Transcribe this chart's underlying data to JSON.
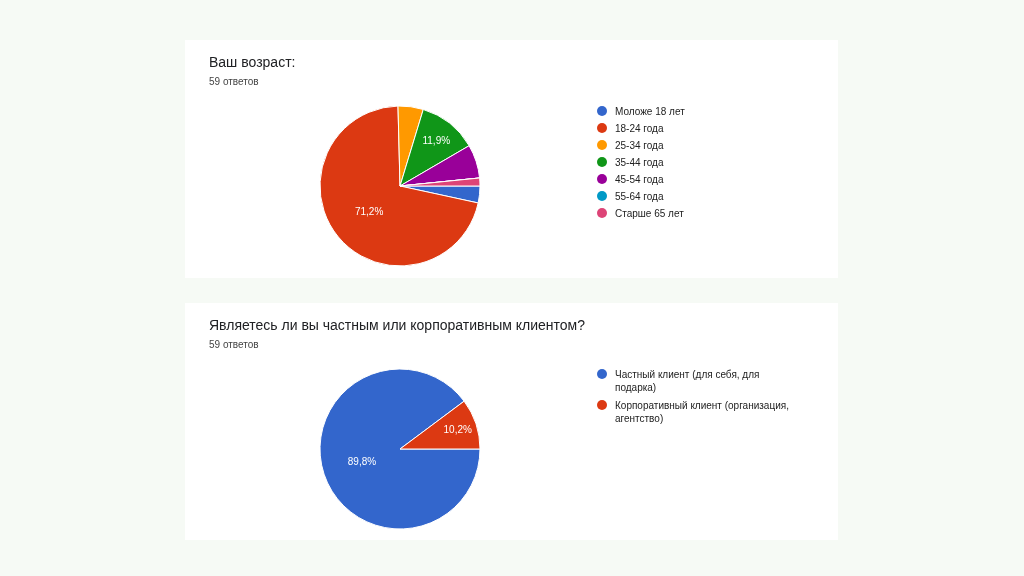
{
  "chart_data": [
    {
      "type": "pie",
      "title": "Ваш возраст:",
      "subtitle": "59 ответов",
      "categories": [
        "Моложе 18 лет",
        "18-24 года",
        "25-34 года",
        "35-44 года",
        "45-54 года",
        "55-64 года",
        "Старше 65 лет"
      ],
      "values": [
        3.4,
        71.2,
        5.1,
        11.9,
        6.8,
        0,
        1.6
      ],
      "value_labels": [
        null,
        "71,2%",
        null,
        "11,9%",
        null,
        null,
        null
      ],
      "colors": [
        "#3366cc",
        "#dc3912",
        "#ff9900",
        "#109618",
        "#990099",
        "#0099c6",
        "#dd4477"
      ],
      "legend": "right"
    },
    {
      "type": "pie",
      "title": "Являетесь ли вы частным или корпоративным клиентом?",
      "subtitle": "59 ответов",
      "categories": [
        "Частный клиент (для себя, для подарка)",
        "Корпоративный клиент (организация, агентство)"
      ],
      "values": [
        89.8,
        10.2
      ],
      "value_labels": [
        "89,8%",
        "10,2%"
      ],
      "colors": [
        "#3366cc",
        "#dc3912"
      ],
      "legend": "right"
    }
  ]
}
